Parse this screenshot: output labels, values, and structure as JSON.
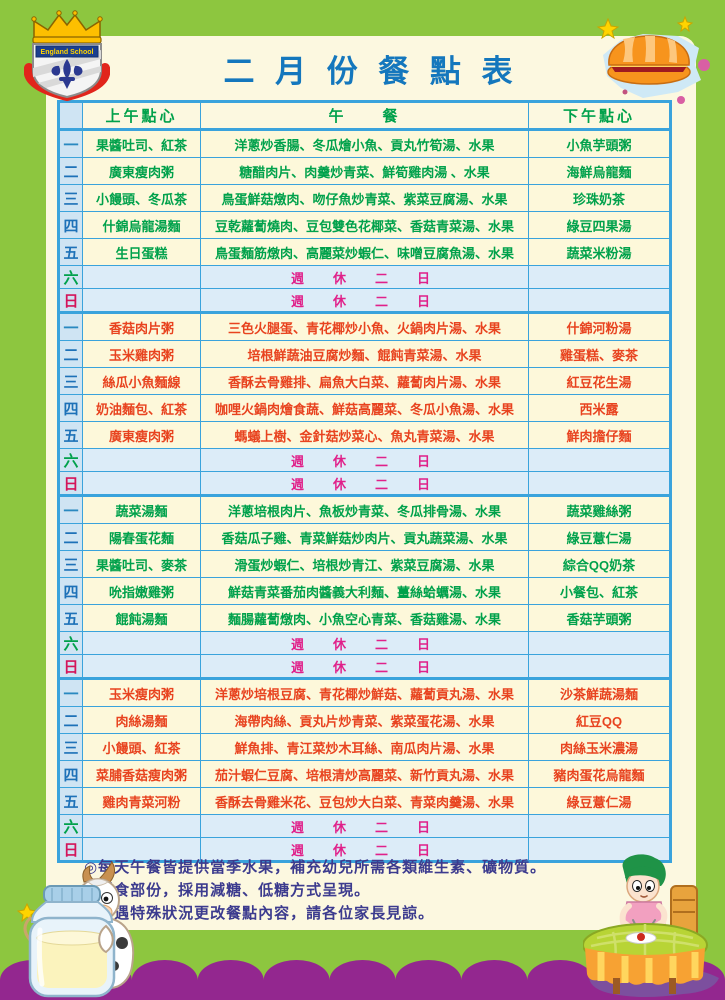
{
  "page": {
    "title": "二 月 份 餐 點 表",
    "logo_banner": "England School",
    "notes": [
      "◎每天午餐皆提供當季水果，補充幼兒所需各類維生素、礦物質。",
      "◎甜食部份，採用減糖、低糖方式呈現。",
      "◎如遇特殊狀況更改餐點內容，請各位家長見諒。"
    ]
  },
  "colors": {
    "frame_green": "#8dc63f",
    "panel_cream": "#fcf8e0",
    "border_blue": "#3aa3dc",
    "day_col_bg": "#cfe4f3",
    "cell_cream": "#fdf8da",
    "weekend_bg": "#dcecf8",
    "header_text": "#00a14b",
    "week_green": "#00a14b",
    "week_red": "#e8431f",
    "weekend_text": "#e0218a",
    "title_blue": "#1477bd",
    "notes_text": "#3c3b8e",
    "wave_purple": "#93278f"
  },
  "table": {
    "headers": {
      "am": "上午點心",
      "lunch": "午　　餐",
      "pm": "下午點心"
    },
    "day_labels": [
      "一",
      "二",
      "三",
      "四",
      "五",
      "六",
      "日"
    ],
    "day_colors": [
      "#2a89c0",
      "#1d71b8",
      "#1d71b8",
      "#1d71b8",
      "#1d71b8",
      "#00a14b",
      "#d4145a"
    ],
    "weekend_label": "週　休　二　日",
    "weeks": [
      {
        "color": "green",
        "days": [
          {
            "am": "果醬吐司、紅茶",
            "lunch": "洋蔥炒香腸、冬瓜燴小魚、貢丸竹筍湯、水果",
            "pm": "小魚芋頭粥"
          },
          {
            "am": "廣東瘦肉粥",
            "lunch": "糖醋肉片、肉羹炒青菜、鮮筍雞肉湯 、水果",
            "pm": "海鮮烏龍麵"
          },
          {
            "am": "小饅頭、冬瓜茶",
            "lunch": "鳥蛋鮮菇燉肉、吻仔魚炒青菜、紫菜豆腐湯、水果",
            "pm": "珍珠奶茶"
          },
          {
            "am": "什錦烏龍湯麵",
            "lunch": "豆乾蘿蔔燒肉、豆包雙色花椰菜、香菇青菜湯、水果",
            "pm": "綠豆四果湯"
          },
          {
            "am": "生日蛋糕",
            "lunch": "鳥蛋麵筋燉肉、高麗菜炒蝦仁、味噌豆腐魚湯、水果",
            "pm": "蔬菜米粉湯"
          }
        ]
      },
      {
        "color": "red",
        "days": [
          {
            "am": "香菇肉片粥",
            "lunch": "三色火腿蛋、青花椰炒小魚、火鍋肉片湯、水果",
            "pm": "什錦河粉湯"
          },
          {
            "am": "玉米雞肉粥",
            "lunch": "培根鮮蔬油豆腐炒麵、餛飩青菜湯、水果",
            "pm": "雞蛋糕、麥茶"
          },
          {
            "am": "絲瓜小魚麵線",
            "lunch": "香酥去骨雞排、扁魚大白菜、蘿蔔肉片湯、水果",
            "pm": "紅豆花生湯"
          },
          {
            "am": "奶油麵包、紅茶",
            "lunch": "咖哩火鍋肉燴食蔬、鮮菇高麗菜、冬瓜小魚湯、水果",
            "pm": "西米露"
          },
          {
            "am": "廣東瘦肉粥",
            "lunch": "螞蟻上樹、金針菇炒菜心、魚丸青菜湯、水果",
            "pm": "鮮肉擔仔麵"
          }
        ]
      },
      {
        "color": "green",
        "days": [
          {
            "am": "蔬菜湯麵",
            "lunch": "洋蔥培根肉片、魚板炒青菜、冬瓜排骨湯、水果",
            "pm": "蔬菜雞絲粥"
          },
          {
            "am": "陽春蛋花麵",
            "lunch": "香菇瓜子雞、青菜鮮菇炒肉片、貢丸蔬菜湯、水果",
            "pm": "綠豆薏仁湯"
          },
          {
            "am": "果醬吐司、麥茶",
            "lunch": "滑蛋炒蝦仁、培根炒青江、紫菜豆腐湯、水果",
            "pm": "綜合QQ奶茶"
          },
          {
            "am": "吮指嫩雞粥",
            "lunch": "鮮菇青菜番茄肉醬義大利麵、薑絲蛤蠣湯、水果",
            "pm": "小餐包、紅茶"
          },
          {
            "am": "餛飩湯麵",
            "lunch": "麵腸蘿蔔燉肉、小魚空心青菜、香菇雞湯、水果",
            "pm": "香菇芋頭粥"
          }
        ]
      },
      {
        "color": "red",
        "days": [
          {
            "am": "玉米瘦肉粥",
            "lunch": "洋蔥炒培根豆腐、青花椰炒鮮菇、蘿蔔貢丸湯、水果",
            "pm": "沙茶鮮蔬湯麵"
          },
          {
            "am": "肉絲湯麵",
            "lunch": "海帶肉絲、貢丸片炒青菜、紫菜蛋花湯、水果",
            "pm": "紅豆QQ"
          },
          {
            "am": "小饅頭、紅茶",
            "lunch": "鮮魚排、青江菜炒木耳絲、南瓜肉片湯、水果",
            "pm": "肉絲玉米濃湯"
          },
          {
            "am": "菜脯香菇瘦肉粥",
            "lunch": "茄汁蝦仁豆腐、培根清炒高麗菜、新竹貢丸湯、水果",
            "pm": "豬肉蛋花烏龍麵"
          },
          {
            "am": "雞肉青菜河粉",
            "lunch": "香酥去骨雞米花、豆包炒大白菜、青菜肉羹湯、水果",
            "pm": "綠豆薏仁湯"
          }
        ]
      }
    ]
  }
}
